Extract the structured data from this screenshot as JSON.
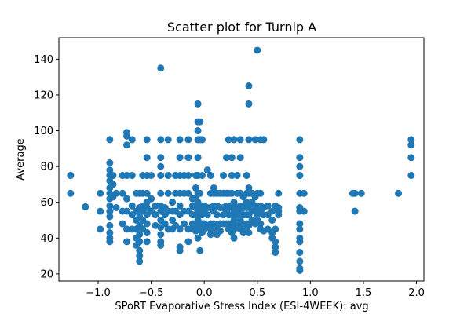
{
  "chart_data": {
    "type": "scatter",
    "title": "Scatter plot for Turnip A",
    "xlabel": "SPoRT Evaporative Stress Index (ESI-4WEEK): avg",
    "ylabel": "Average",
    "xlim": [
      -1.37,
      2.07
    ],
    "ylim": [
      16,
      152
    ],
    "xticks": [
      -1.0,
      -0.5,
      0.0,
      0.5,
      1.0,
      1.5,
      2.0
    ],
    "xtick_labels": [
      "−1.0",
      "−0.5",
      "0.0",
      "0.5",
      "1.0",
      "1.5",
      "2.0"
    ],
    "yticks": [
      20,
      40,
      60,
      80,
      100,
      120,
      140
    ],
    "ytick_labels": [
      "20",
      "40",
      "60",
      "80",
      "100",
      "120",
      "140"
    ],
    "grid": false,
    "marker_color": "#1f77b4",
    "series": [
      {
        "points": [
          [
            -1.26,
            75
          ],
          [
            -1.26,
            65
          ],
          [
            -1.12,
            57.5
          ],
          [
            -0.98,
            65
          ],
          [
            -0.98,
            55
          ],
          [
            -0.98,
            45
          ],
          [
            -0.89,
            95
          ],
          [
            -0.89,
            82
          ],
          [
            -0.89,
            78
          ],
          [
            -0.89,
            75
          ],
          [
            -0.89,
            72
          ],
          [
            -0.89,
            68
          ],
          [
            -0.89,
            65
          ],
          [
            -0.89,
            62
          ],
          [
            -0.89,
            58
          ],
          [
            -0.89,
            55
          ],
          [
            -0.89,
            52
          ],
          [
            -0.89,
            47
          ],
          [
            -0.89,
            43
          ],
          [
            -0.89,
            40
          ],
          [
            -0.89,
            38
          ],
          [
            -0.86,
            75
          ],
          [
            -0.86,
            70
          ],
          [
            -0.86,
            63
          ],
          [
            -0.83,
            65
          ],
          [
            -0.83,
            57
          ],
          [
            -0.77,
            75
          ],
          [
            -0.77,
            65
          ],
          [
            -0.77,
            55
          ],
          [
            -0.77,
            48
          ],
          [
            -0.73,
            99
          ],
          [
            -0.73,
            97
          ],
          [
            -0.73,
            92
          ],
          [
            -0.73,
            75
          ],
          [
            -0.73,
            62
          ],
          [
            -0.73,
            55
          ],
          [
            -0.73,
            45
          ],
          [
            -0.73,
            38
          ],
          [
            -0.68,
            95
          ],
          [
            -0.68,
            75
          ],
          [
            -0.68,
            58
          ],
          [
            -0.68,
            53
          ],
          [
            -0.68,
            45
          ],
          [
            -0.64,
            65
          ],
          [
            -0.64,
            55
          ],
          [
            -0.64,
            50
          ],
          [
            -0.64,
            45
          ],
          [
            -0.64,
            40
          ],
          [
            -0.64,
            36
          ],
          [
            -0.61,
            65
          ],
          [
            -0.61,
            57
          ],
          [
            -0.61,
            52
          ],
          [
            -0.61,
            47
          ],
          [
            -0.61,
            42
          ],
          [
            -0.61,
            38
          ],
          [
            -0.61,
            33
          ],
          [
            -0.61,
            30
          ],
          [
            -0.61,
            27
          ],
          [
            -0.58,
            75
          ],
          [
            -0.58,
            65
          ],
          [
            -0.58,
            58
          ],
          [
            -0.58,
            55
          ],
          [
            -0.58,
            50
          ],
          [
            -0.58,
            45
          ],
          [
            -0.54,
            95
          ],
          [
            -0.54,
            85
          ],
          [
            -0.54,
            75
          ],
          [
            -0.54,
            65
          ],
          [
            -0.54,
            60
          ],
          [
            -0.54,
            57
          ],
          [
            -0.54,
            53
          ],
          [
            -0.54,
            48
          ],
          [
            -0.54,
            43
          ],
          [
            -0.54,
            38
          ],
          [
            -0.5,
            75
          ],
          [
            -0.5,
            62
          ],
          [
            -0.5,
            55
          ],
          [
            -0.46,
            58
          ],
          [
            -0.46,
            53
          ],
          [
            -0.46,
            47
          ],
          [
            -0.41,
            135
          ],
          [
            -0.41,
            95
          ],
          [
            -0.41,
            85
          ],
          [
            -0.41,
            80
          ],
          [
            -0.41,
            75
          ],
          [
            -0.41,
            65
          ],
          [
            -0.41,
            58
          ],
          [
            -0.41,
            55
          ],
          [
            -0.41,
            50
          ],
          [
            -0.41,
            46
          ],
          [
            -0.41,
            42
          ],
          [
            -0.41,
            38
          ],
          [
            -0.41,
            36
          ],
          [
            -0.37,
            57
          ],
          [
            -0.37,
            53
          ],
          [
            -0.37,
            48
          ],
          [
            -0.34,
            95
          ],
          [
            -0.34,
            75
          ],
          [
            -0.34,
            65
          ],
          [
            -0.34,
            55
          ],
          [
            -0.34,
            45
          ],
          [
            -0.3,
            60
          ],
          [
            -0.3,
            55
          ],
          [
            -0.3,
            50
          ],
          [
            -0.3,
            45
          ],
          [
            -0.27,
            75
          ],
          [
            -0.27,
            65
          ],
          [
            -0.27,
            55
          ],
          [
            -0.27,
            47
          ],
          [
            -0.23,
            95
          ],
          [
            -0.23,
            85
          ],
          [
            -0.23,
            75
          ],
          [
            -0.23,
            65
          ],
          [
            -0.23,
            58
          ],
          [
            -0.23,
            53
          ],
          [
            -0.23,
            45
          ],
          [
            -0.23,
            35
          ],
          [
            -0.23,
            33
          ],
          [
            -0.19,
            75
          ],
          [
            -0.19,
            65
          ],
          [
            -0.19,
            55
          ],
          [
            -0.19,
            48
          ],
          [
            -0.15,
            95
          ],
          [
            -0.15,
            85
          ],
          [
            -0.15,
            75
          ],
          [
            -0.15,
            65
          ],
          [
            -0.15,
            55
          ],
          [
            -0.15,
            45
          ],
          [
            -0.15,
            38
          ],
          [
            -0.11,
            62
          ],
          [
            -0.11,
            58
          ],
          [
            -0.11,
            53
          ],
          [
            -0.11,
            48
          ],
          [
            -0.11,
            45
          ],
          [
            -0.08,
            75
          ],
          [
            -0.08,
            68
          ],
          [
            -0.08,
            62
          ],
          [
            -0.08,
            57
          ],
          [
            -0.08,
            53
          ],
          [
            -0.08,
            48
          ],
          [
            -0.08,
            44
          ],
          [
            -0.06,
            115
          ],
          [
            -0.06,
            105
          ],
          [
            -0.06,
            100
          ],
          [
            -0.06,
            95
          ],
          [
            -0.06,
            85
          ],
          [
            -0.06,
            75
          ],
          [
            -0.06,
            65
          ],
          [
            -0.06,
            60
          ],
          [
            -0.06,
            55
          ],
          [
            -0.06,
            50
          ],
          [
            -0.06,
            45
          ],
          [
            -0.06,
            40
          ],
          [
            -0.04,
            105
          ],
          [
            -0.04,
            95
          ],
          [
            -0.04,
            65
          ],
          [
            -0.04,
            55
          ],
          [
            -0.04,
            47
          ],
          [
            -0.04,
            33
          ],
          [
            -0.02,
            95
          ],
          [
            -0.02,
            75
          ],
          [
            -0.02,
            58
          ],
          [
            -0.02,
            53
          ],
          [
            -0.02,
            48
          ],
          [
            -0.02,
            43
          ],
          [
            0.0,
            58
          ],
          [
            0.0,
            55
          ],
          [
            0.0,
            48
          ],
          [
            0.0,
            45
          ],
          [
            0.03,
            78
          ],
          [
            0.03,
            57
          ],
          [
            0.03,
            53
          ],
          [
            0.03,
            47
          ],
          [
            0.06,
            75
          ],
          [
            0.06,
            65
          ],
          [
            0.06,
            57
          ],
          [
            0.06,
            48
          ],
          [
            0.06,
            45
          ],
          [
            0.06,
            42
          ],
          [
            0.09,
            68
          ],
          [
            0.09,
            65
          ],
          [
            0.09,
            58
          ],
          [
            0.09,
            55
          ],
          [
            0.09,
            48
          ],
          [
            0.12,
            65
          ],
          [
            0.12,
            58
          ],
          [
            0.12,
            53
          ],
          [
            0.12,
            45
          ],
          [
            0.12,
            42
          ],
          [
            0.15,
            65
          ],
          [
            0.15,
            57
          ],
          [
            0.15,
            48
          ],
          [
            0.15,
            44
          ],
          [
            0.18,
            75
          ],
          [
            0.18,
            65
          ],
          [
            0.18,
            57
          ],
          [
            0.18,
            53
          ],
          [
            0.18,
            48
          ],
          [
            0.21,
            85
          ],
          [
            0.21,
            65
          ],
          [
            0.21,
            58
          ],
          [
            0.21,
            55
          ],
          [
            0.21,
            48
          ],
          [
            0.23,
            95
          ],
          [
            0.23,
            65
          ],
          [
            0.23,
            57
          ],
          [
            0.23,
            53
          ],
          [
            0.23,
            48
          ],
          [
            0.23,
            45
          ],
          [
            0.26,
            85
          ],
          [
            0.26,
            75
          ],
          [
            0.26,
            65
          ],
          [
            0.26,
            58
          ],
          [
            0.26,
            53
          ],
          [
            0.26,
            48
          ],
          [
            0.26,
            43
          ],
          [
            0.28,
            95
          ],
          [
            0.28,
            60
          ],
          [
            0.28,
            55
          ],
          [
            0.28,
            50
          ],
          [
            0.28,
            45
          ],
          [
            0.28,
            40
          ],
          [
            0.31,
            75
          ],
          [
            0.31,
            65
          ],
          [
            0.31,
            57
          ],
          [
            0.31,
            53
          ],
          [
            0.31,
            47
          ],
          [
            0.34,
            95
          ],
          [
            0.34,
            85
          ],
          [
            0.34,
            65
          ],
          [
            0.34,
            58
          ],
          [
            0.34,
            55
          ],
          [
            0.34,
            50
          ],
          [
            0.34,
            45
          ],
          [
            0.37,
            63
          ],
          [
            0.37,
            57
          ],
          [
            0.37,
            53
          ],
          [
            0.37,
            48
          ],
          [
            0.37,
            43
          ],
          [
            0.4,
            75
          ],
          [
            0.4,
            65
          ],
          [
            0.4,
            60
          ],
          [
            0.4,
            57
          ],
          [
            0.4,
            53
          ],
          [
            0.4,
            48
          ],
          [
            0.4,
            45
          ],
          [
            0.42,
            125
          ],
          [
            0.42,
            115
          ],
          [
            0.42,
            95
          ],
          [
            0.42,
            68
          ],
          [
            0.42,
            65
          ],
          [
            0.42,
            58
          ],
          [
            0.42,
            53
          ],
          [
            0.42,
            47
          ],
          [
            0.42,
            43
          ],
          [
            0.45,
            65
          ],
          [
            0.45,
            60
          ],
          [
            0.45,
            55
          ],
          [
            0.45,
            50
          ],
          [
            0.48,
            95
          ],
          [
            0.48,
            63
          ],
          [
            0.48,
            58
          ],
          [
            0.48,
            55
          ],
          [
            0.48,
            48
          ],
          [
            0.5,
            145
          ],
          [
            0.5,
            65
          ],
          [
            0.5,
            57
          ],
          [
            0.5,
            53
          ],
          [
            0.5,
            50
          ],
          [
            0.53,
            95
          ],
          [
            0.53,
            65
          ],
          [
            0.53,
            58
          ],
          [
            0.53,
            55
          ],
          [
            0.53,
            48
          ],
          [
            0.53,
            45
          ],
          [
            0.56,
            95
          ],
          [
            0.56,
            57
          ],
          [
            0.56,
            53
          ],
          [
            0.56,
            44
          ],
          [
            0.6,
            58
          ],
          [
            0.6,
            53
          ],
          [
            0.6,
            45
          ],
          [
            0.64,
            55
          ],
          [
            0.64,
            50
          ],
          [
            0.64,
            43
          ],
          [
            0.64,
            40
          ],
          [
            0.67,
            58
          ],
          [
            0.67,
            45
          ],
          [
            0.67,
            38
          ],
          [
            0.67,
            35
          ],
          [
            0.67,
            32
          ],
          [
            0.7,
            65
          ],
          [
            0.7,
            57
          ],
          [
            0.7,
            55
          ],
          [
            0.7,
            53
          ],
          [
            0.9,
            95
          ],
          [
            0.9,
            85
          ],
          [
            0.9,
            80
          ],
          [
            0.9,
            75
          ],
          [
            0.9,
            65
          ],
          [
            0.9,
            57
          ],
          [
            0.9,
            55
          ],
          [
            0.9,
            48
          ],
          [
            0.9,
            45
          ],
          [
            0.9,
            40
          ],
          [
            0.9,
            38
          ],
          [
            0.9,
            32
          ],
          [
            0.9,
            27
          ],
          [
            0.9,
            23
          ],
          [
            0.9,
            22
          ],
          [
            0.94,
            65
          ],
          [
            0.94,
            55
          ],
          [
            1.4,
            65
          ],
          [
            1.42,
            65
          ],
          [
            1.42,
            55
          ],
          [
            1.48,
            65
          ],
          [
            1.83,
            65
          ],
          [
            1.95,
            95
          ],
          [
            1.95,
            92
          ],
          [
            1.95,
            85
          ],
          [
            1.95,
            75
          ]
        ]
      }
    ]
  }
}
